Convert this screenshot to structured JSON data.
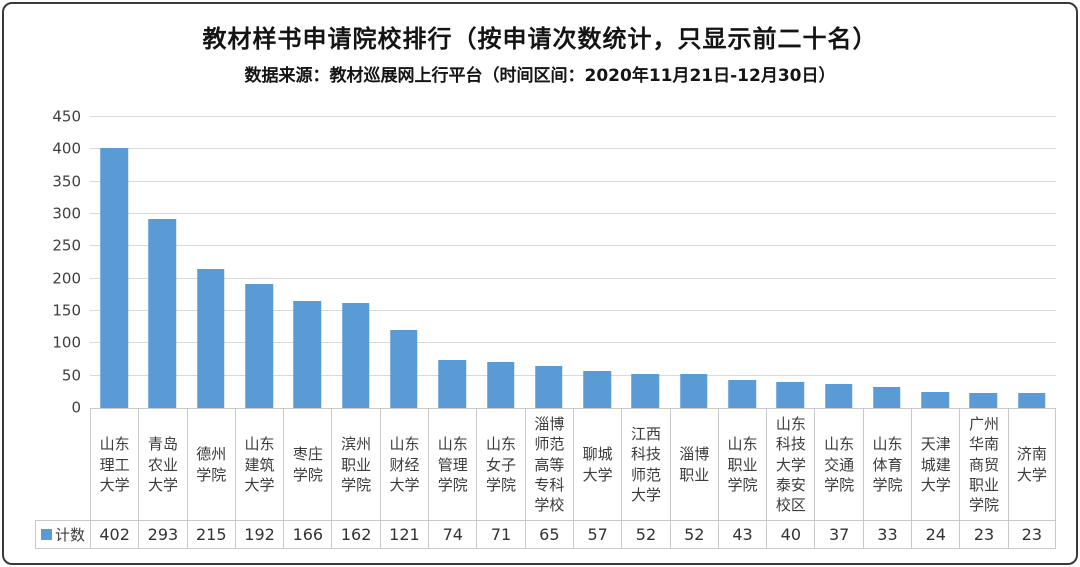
{
  "card": {
    "title": "教材样书申请院校排行（按申请次数统计，只显示前二十名）",
    "subtitle": "数据来源：教材巡展网上行平台（时间区间：2020年11月21日-12月30日）"
  },
  "chart_data": {
    "type": "bar",
    "title": "教材样书申请院校排行（按申请次数统计，只显示前二十名）",
    "subtitle": "数据来源：教材巡展网上行平台（时间区间：2020年11月21日-12月30日）",
    "categories": [
      "山东理工大学",
      "青岛农业大学",
      "德州学院",
      "山东建筑大学",
      "枣庄学院",
      "滨州职业学院",
      "山东财经大学",
      "山东管理学院",
      "山东女子学院",
      "淄博师范高等专科学校",
      "聊城大学",
      "江西科技师范大学",
      "淄博职业",
      "山东职业学院",
      "山东科技大学泰安校区",
      "山东交通学院",
      "山东体育学院",
      "天津城建大学",
      "广州华南商贸职业学院",
      "济南大学"
    ],
    "series": [
      {
        "name": "计数",
        "values": [
          402,
          293,
          215,
          192,
          166,
          162,
          121,
          74,
          71,
          65,
          57,
          52,
          52,
          43,
          40,
          37,
          33,
          24,
          23,
          23
        ]
      }
    ],
    "xlabel": "",
    "ylabel": "",
    "ylim": [
      0,
      450
    ],
    "ytick_step": 50,
    "grid": "horizontal",
    "legend_position": "bottom-left-data-table",
    "colors": {
      "bar": "#5b9bd5",
      "gridline": "#d9d9d9",
      "table_border": "#c9c9c9",
      "text": "#141414"
    }
  }
}
